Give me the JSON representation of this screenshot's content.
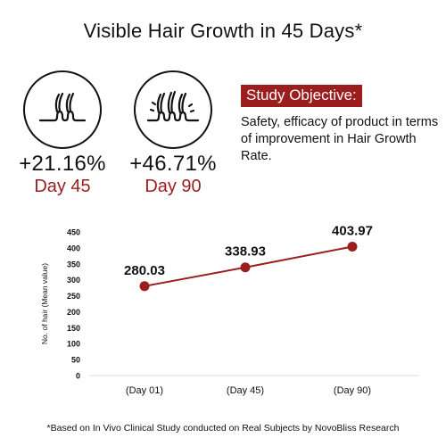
{
  "title": "Visible Hair Growth in 45 Days*",
  "stats": [
    {
      "icon": "hair-follicle-icon",
      "value": "+21.16%",
      "day": "Day 45"
    },
    {
      "icon": "hair-growth-icon",
      "value": "+46.71%",
      "day": "Day 90"
    }
  ],
  "objective": {
    "label": "Study Objective:",
    "text": "Safety, efficacy of product in terms of improvement in Hair Growth Rate."
  },
  "colors": {
    "accent": "#9b1d1d",
    "text": "#111111",
    "grid": "#dddddd"
  },
  "chart_data": {
    "type": "line",
    "categories": [
      "(Day 01)",
      "(Day 45)",
      "(Day 90)"
    ],
    "series": [
      {
        "values": [
          280.03,
          338.93,
          403.97
        ]
      }
    ],
    "data_labels": [
      "280.03",
      "338.93",
      "403.97"
    ],
    "ylabel": "No. of hair (Mean value)",
    "xlabel": "",
    "ylim": [
      0,
      450
    ],
    "yticks": [
      0,
      50,
      100,
      150,
      200,
      250,
      300,
      350,
      400,
      450
    ],
    "grid": false
  },
  "footnote": "*Based on In Vivo Clinical Study conducted on Real Subjects by NovoBliss Research"
}
